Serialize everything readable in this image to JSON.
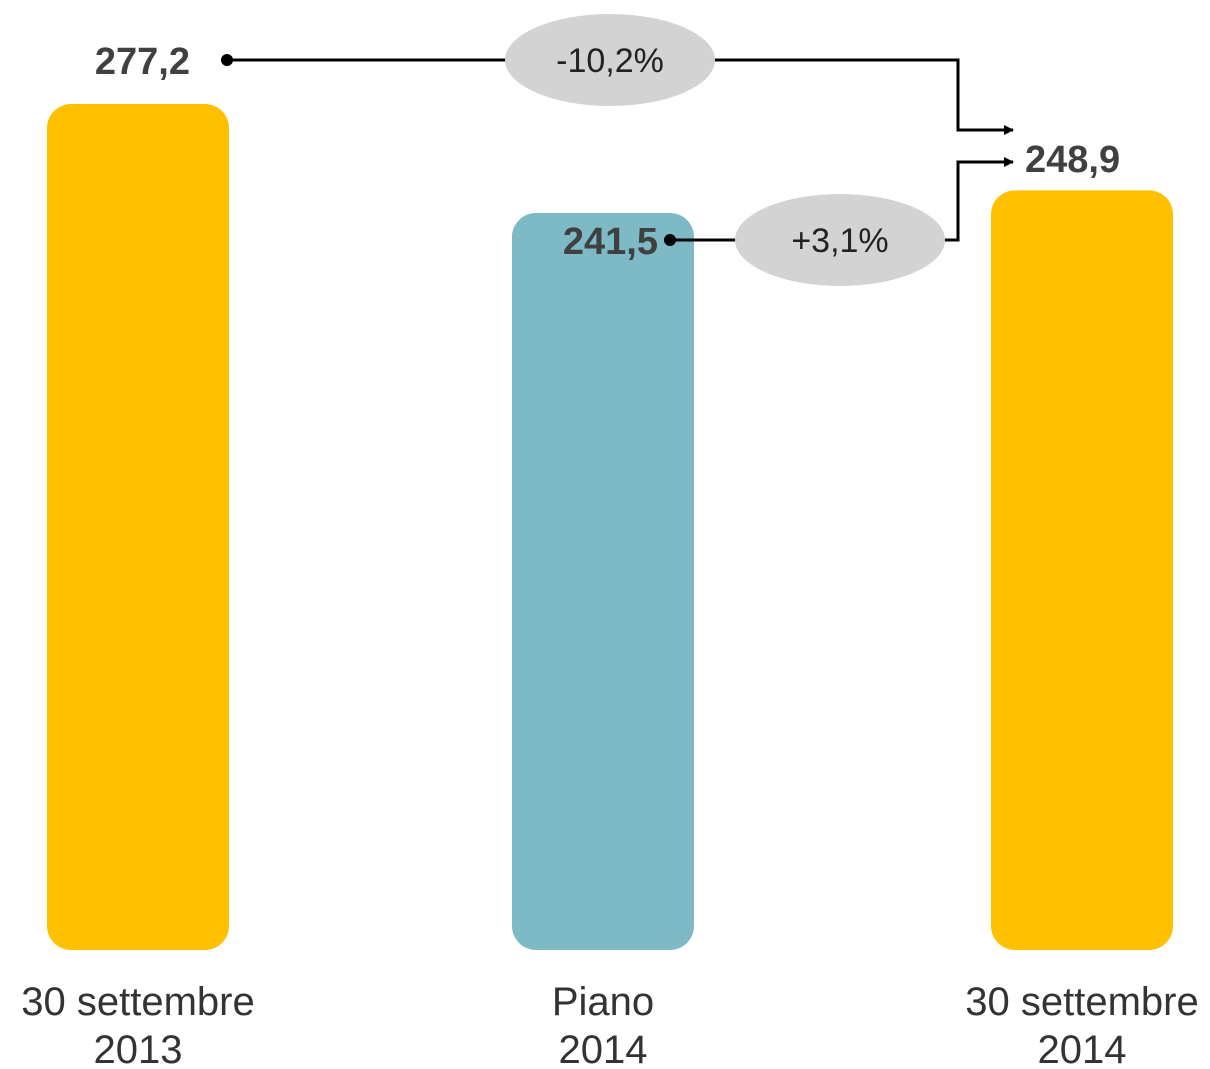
{
  "chart_data": {
    "type": "bar",
    "categories": [
      [
        "30 settembre",
        "2013"
      ],
      [
        "Piano",
        "2014"
      ],
      [
        "30 settembre",
        "2014"
      ]
    ],
    "values": [
      277.2,
      241.5,
      248.9
    ],
    "value_labels": [
      "277,2",
      "241,5",
      "248,9"
    ],
    "bar_colors": [
      "#FFC000",
      "#7DBAC5",
      "#FFC000"
    ],
    "comparisons": [
      {
        "from": 0,
        "to": 2,
        "label": "-10,2%"
      },
      {
        "from": 1,
        "to": 2,
        "label": "+3,1%"
      }
    ],
    "colors": {
      "bubble": "#D3D3D3",
      "connector": "#000000",
      "value_text": "#404040"
    },
    "title": "",
    "xlabel": "",
    "ylabel": ""
  }
}
